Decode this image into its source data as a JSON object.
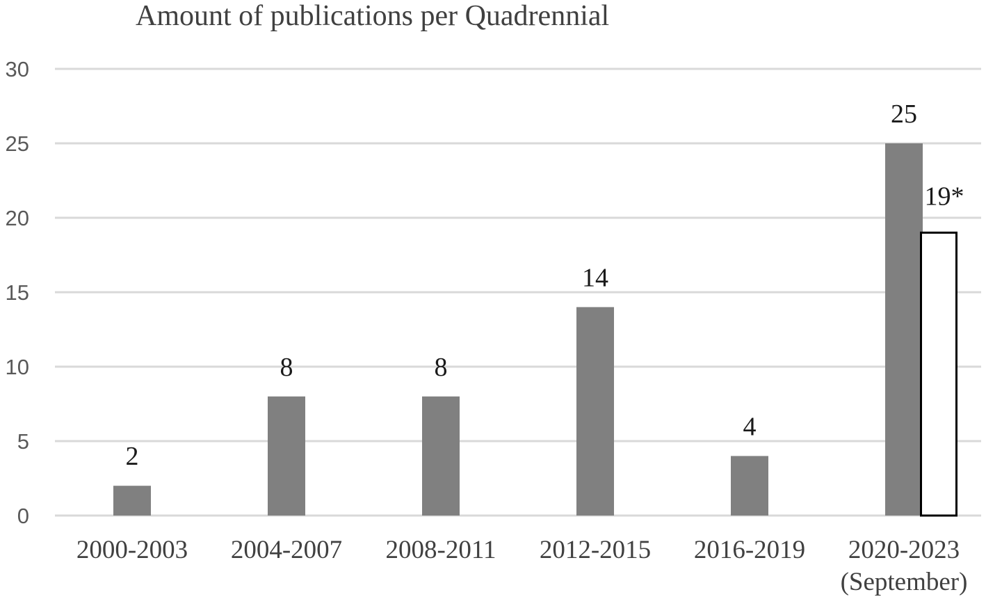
{
  "chart_data": {
    "type": "bar",
    "title": "Amount of publications per Quadrennial",
    "categories": [
      "2000-2003",
      "2004-2007",
      "2008-2011",
      "2012-2015",
      "2016-2019",
      "2020-2023\n(September)"
    ],
    "series": [
      {
        "color": "#808080",
        "values": [
          2,
          8,
          8,
          14,
          4,
          25
        ]
      },
      {
        "color": "#ffffff",
        "values": [
          null,
          null,
          null,
          null,
          null,
          19
        ],
        "value_labels": [
          null,
          null,
          null,
          null,
          null,
          "19*"
        ]
      }
    ],
    "ylim": [
      0,
      30
    ],
    "yticks": [
      0,
      5,
      10,
      15,
      20,
      25,
      30
    ],
    "grid": true
  }
}
